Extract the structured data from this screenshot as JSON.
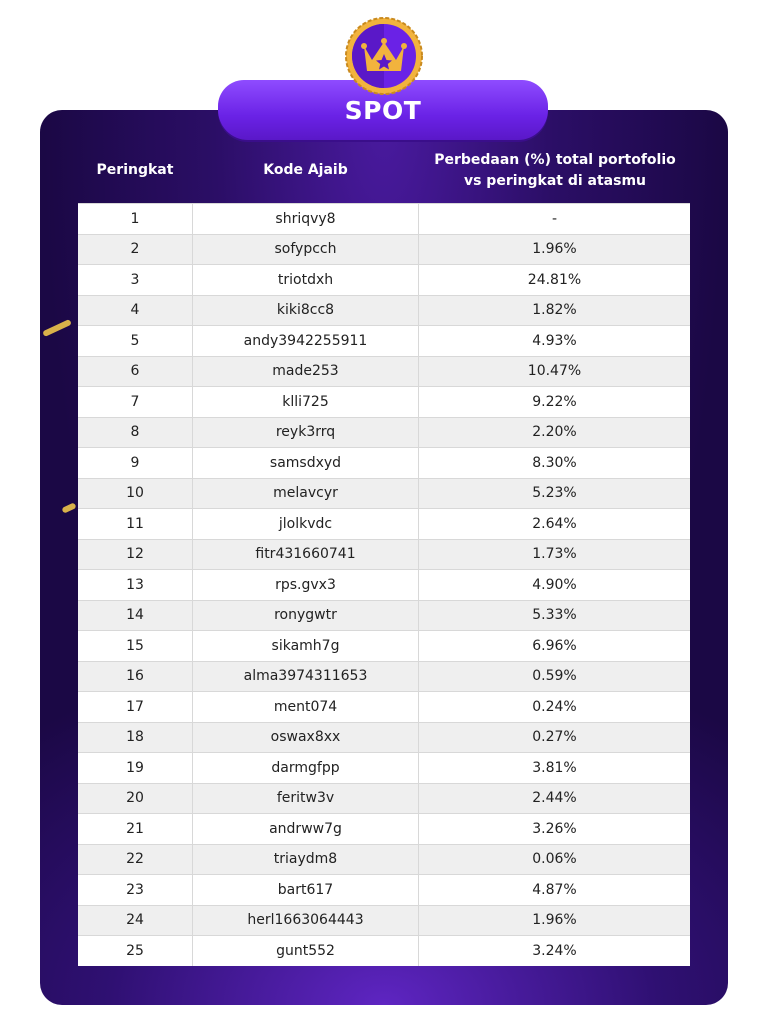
{
  "title": "SPOT",
  "badge_icon": "crown-star-icon",
  "colors": {
    "accent": "#7b35f5",
    "card_bg": "#1b0845",
    "badge_gold": "#f2b33d"
  },
  "headers": {
    "rank": "Peringkat",
    "code": "Kode Ajaib",
    "diff_line1": "Perbedaan (%) total portofolio",
    "diff_line2": "vs peringkat di atasmu"
  },
  "rows": [
    {
      "rank": "1",
      "code": "shriqvy8",
      "diff": "-"
    },
    {
      "rank": "2",
      "code": "sofypcch",
      "diff": "1.96%"
    },
    {
      "rank": "3",
      "code": "triotdxh",
      "diff": "24.81%"
    },
    {
      "rank": "4",
      "code": "kiki8cc8",
      "diff": "1.82%"
    },
    {
      "rank": "5",
      "code": "andy3942255911",
      "diff": "4.93%"
    },
    {
      "rank": "6",
      "code": "made253",
      "diff": "10.47%"
    },
    {
      "rank": "7",
      "code": "klli725",
      "diff": "9.22%"
    },
    {
      "rank": "8",
      "code": "reyk3rrq",
      "diff": "2.20%"
    },
    {
      "rank": "9",
      "code": "samsdxyd",
      "diff": "8.30%"
    },
    {
      "rank": "10",
      "code": "melavcyr",
      "diff": "5.23%"
    },
    {
      "rank": "11",
      "code": "jlolkvdc",
      "diff": "2.64%"
    },
    {
      "rank": "12",
      "code": "fitr431660741",
      "diff": "1.73%"
    },
    {
      "rank": "13",
      "code": "rps.gvx3",
      "diff": "4.90%"
    },
    {
      "rank": "14",
      "code": "ronygwtr",
      "diff": "5.33%"
    },
    {
      "rank": "15",
      "code": "sikamh7g",
      "diff": "6.96%"
    },
    {
      "rank": "16",
      "code": "alma3974311653",
      "diff": "0.59%"
    },
    {
      "rank": "17",
      "code": "ment074",
      "diff": "0.24%"
    },
    {
      "rank": "18",
      "code": "oswax8xx",
      "diff": "0.27%"
    },
    {
      "rank": "19",
      "code": "darmgfpp",
      "diff": "3.81%"
    },
    {
      "rank": "20",
      "code": "feritw3v",
      "diff": "2.44%"
    },
    {
      "rank": "21",
      "code": "andrww7g",
      "diff": "3.26%"
    },
    {
      "rank": "22",
      "code": "triaydm8",
      "diff": "0.06%"
    },
    {
      "rank": "23",
      "code": "bart617",
      "diff": "4.87%"
    },
    {
      "rank": "24",
      "code": "herl1663064443",
      "diff": "1.96%"
    },
    {
      "rank": "25",
      "code": "gunt552",
      "diff": "3.24%"
    }
  ]
}
